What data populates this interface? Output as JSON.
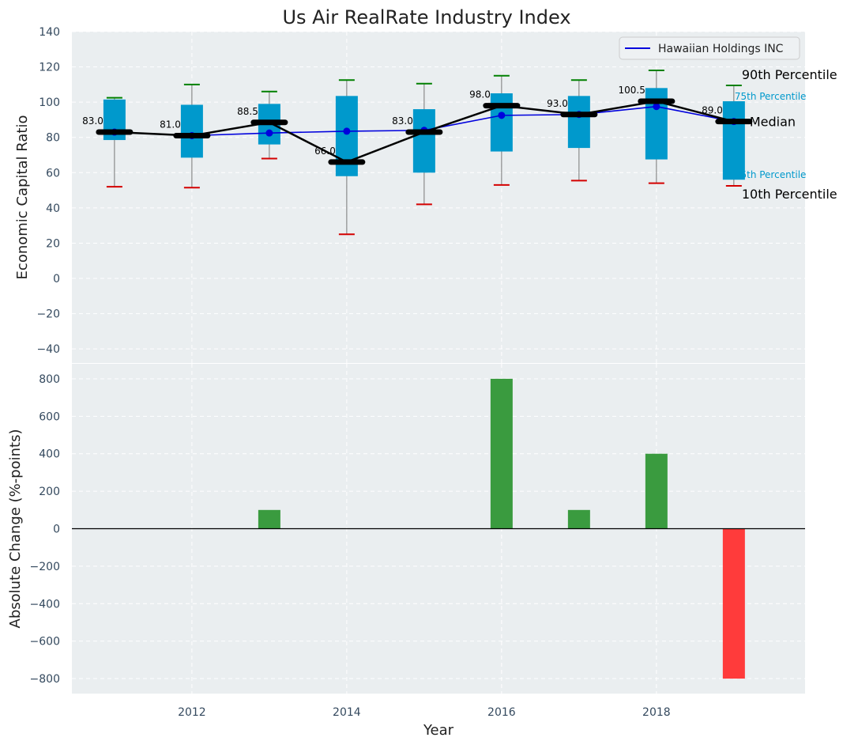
{
  "title": "Us Air RealRate Industry Index",
  "colors": {
    "plot_bg": "#eaeef0",
    "grid": "#ffffff",
    "box_fill": "#0099cc",
    "whisker_top": "#008000",
    "whisker_bottom": "#d40000",
    "median_line": "#000000",
    "company_line": "#0000dd",
    "positive_bar": "#3a9b3f",
    "negative_bar": "#ff3b3b",
    "tick_text": "#34495e",
    "annotation_cyan": "#0099cc"
  },
  "chart_data": [
    {
      "type": "box",
      "ylabel": "Economic Capital Ratio",
      "ylim": [
        -48,
        140
      ],
      "yticks": [
        140,
        120,
        100,
        80,
        60,
        40,
        20,
        0,
        -20,
        -40
      ],
      "ytick_labels": [
        "140",
        "120",
        "100",
        "80",
        "60",
        "40",
        "20",
        "0",
        "−20",
        "−40"
      ],
      "xlim": [
        2010.45,
        2019.92
      ],
      "grid": true,
      "legend": {
        "position": "top-right",
        "entries": [
          "Hawaiian Holdings INC"
        ]
      },
      "years": [
        2011,
        2012,
        2013,
        2014,
        2015,
        2016,
        2017,
        2018,
        2019
      ],
      "p10": [
        52,
        51.5,
        68,
        25,
        42,
        53,
        55.5,
        54,
        52.5
      ],
      "p25": [
        78.5,
        68.5,
        76,
        58,
        60,
        72,
        74,
        67.5,
        56
      ],
      "median": [
        83,
        81,
        88.5,
        66,
        83,
        98,
        93,
        100.5,
        89
      ],
      "median_labels": [
        "83.0",
        "81.0",
        "88.5",
        "66.0",
        "83.0",
        "98.0",
        "93.0",
        "100.5",
        "89.0"
      ],
      "p75": [
        101.5,
        98.5,
        99,
        103.5,
        96,
        105,
        103.5,
        108,
        100.5
      ],
      "p90": [
        102.5,
        110,
        106,
        112.5,
        110.5,
        115,
        112.5,
        118,
        109.5
      ],
      "series": [
        {
          "name": "Hawaiian Holdings INC",
          "values": [
            83,
            81,
            82.5,
            83.5,
            84,
            92.5,
            93,
            97.5,
            89
          ]
        }
      ],
      "annotations": [
        "90th Percentile",
        "75th Percentile",
        "Median",
        "25th Percentile",
        "10th Percentile"
      ]
    },
    {
      "type": "bar",
      "ylabel": "Absolute Change (%-points)",
      "xlabel": "Year",
      "ylim": [
        -880,
        880
      ],
      "yticks": [
        800,
        600,
        400,
        200,
        0,
        -200,
        -400,
        -600,
        -800
      ],
      "ytick_labels": [
        "800",
        "600",
        "400",
        "200",
        "0",
        "−200",
        "−400",
        "−600",
        "−800"
      ],
      "xticks": [
        2012,
        2014,
        2016,
        2018
      ],
      "xtick_labels": [
        "2012",
        "2014",
        "2016",
        "2018"
      ],
      "xlim": [
        2010.45,
        2019.92
      ],
      "grid": true,
      "years": [
        2011,
        2012,
        2013,
        2014,
        2015,
        2016,
        2017,
        2018,
        2019
      ],
      "values": [
        0,
        0,
        100,
        0,
        0,
        800,
        100,
        400,
        -800
      ]
    }
  ]
}
